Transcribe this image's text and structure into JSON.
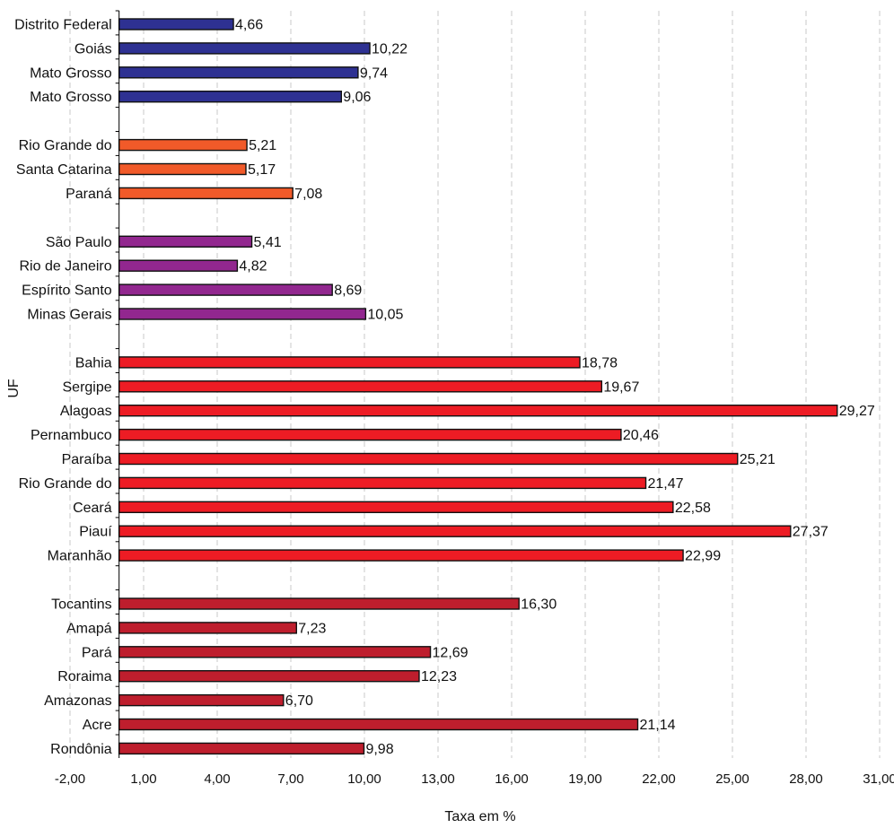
{
  "chart_data": {
    "type": "bar",
    "orientation": "horizontal",
    "xlabel": "Taxa em %",
    "ylabel": "UF",
    "xlim": [
      -2,
      31
    ],
    "x_ticks": [
      -2,
      1,
      4,
      7,
      10,
      13,
      16,
      19,
      22,
      25,
      28,
      31
    ],
    "x_tick_labels": [
      "-2,00",
      "1,00",
      "4,00",
      "7,00",
      "10,00",
      "13,00",
      "16,00",
      "19,00",
      "22,00",
      "25,00",
      "28,00",
      "31,00"
    ],
    "grid": "vertical dashed",
    "legend": "none",
    "groups": [
      {
        "color": "#2E3192",
        "categories": [
          "Distrito Federal",
          "Goiás",
          "Mato Grosso",
          "Mato Grosso"
        ],
        "values": [
          4.66,
          10.22,
          9.74,
          9.06
        ],
        "value_labels": [
          "4,66",
          "10,22",
          "9,74",
          "9,06"
        ]
      },
      {
        "color": "#F15A29",
        "categories": [
          "Rio Grande do",
          "Santa Catarina",
          "Paraná"
        ],
        "values": [
          5.21,
          5.17,
          7.08
        ],
        "value_labels": [
          "5,21",
          "5,17",
          "7,08"
        ]
      },
      {
        "color": "#92278F",
        "categories": [
          "São Paulo",
          "Rio de Janeiro",
          "Espírito Santo",
          "Minas Gerais"
        ],
        "values": [
          5.41,
          4.82,
          8.69,
          10.05
        ],
        "value_labels": [
          "5,41",
          "4,82",
          "8,69",
          "10,05"
        ]
      },
      {
        "color": "#ED1C24",
        "categories": [
          "Bahia",
          "Sergipe",
          "Alagoas",
          "Pernambuco",
          "Paraíba",
          "Rio Grande do",
          "Ceará",
          "Piauí",
          "Maranhão"
        ],
        "values": [
          18.78,
          19.67,
          29.27,
          20.46,
          25.21,
          21.47,
          22.58,
          27.37,
          22.99
        ],
        "value_labels": [
          "18,78",
          "19,67",
          "29,27",
          "20,46",
          "25,21",
          "21,47",
          "22,58",
          "27,37",
          "22,99"
        ]
      },
      {
        "color": "#BE1E2D",
        "categories": [
          "Tocantins",
          "Amapá",
          "Pará",
          "Roraima",
          "Amazonas",
          "Acre",
          "Rondônia"
        ],
        "values": [
          16.3,
          7.23,
          12.69,
          12.23,
          6.7,
          21.14,
          9.98
        ],
        "value_labels": [
          "16,30",
          "7,23",
          "12,69",
          "12,23",
          "6,70",
          "21,14",
          "9,98"
        ]
      }
    ]
  }
}
